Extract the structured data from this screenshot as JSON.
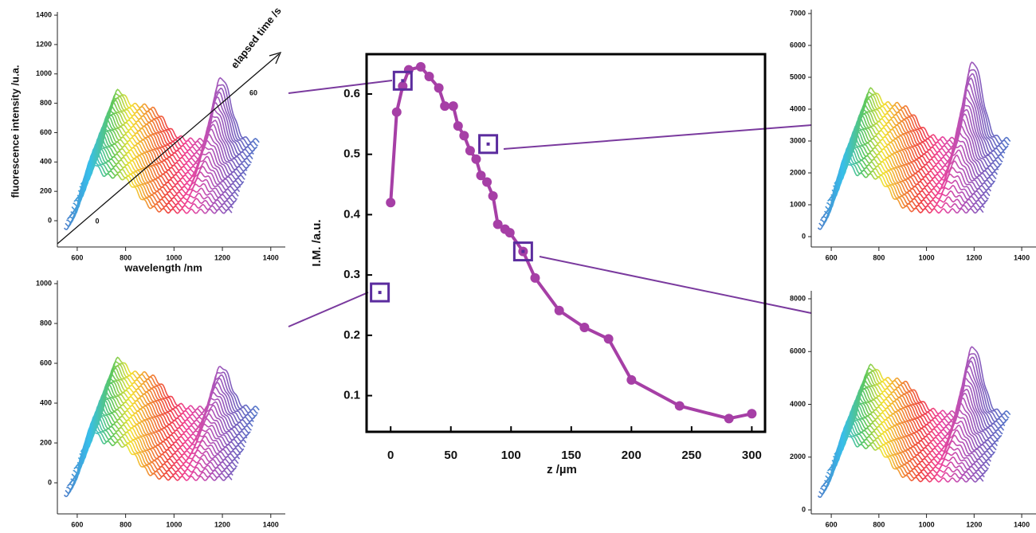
{
  "chart_data": {
    "type": "line",
    "x": [
      0,
      5,
      10,
      15,
      25,
      32,
      40,
      45,
      52,
      56,
      61,
      66,
      71,
      75,
      80,
      85,
      89,
      95,
      99,
      110,
      120,
      140,
      161,
      181,
      200,
      240,
      281,
      300
    ],
    "series": [
      {
        "color": "#a63fa6",
        "values": [
          0.42,
          0.57,
          0.613,
          0.64,
          0.645,
          0.629,
          0.61,
          0.58,
          0.58,
          0.547,
          0.531,
          0.506,
          0.492,
          0.465,
          0.454,
          0.431,
          0.384,
          0.376,
          0.37,
          0.339,
          0.295,
          0.241,
          0.213,
          0.194,
          0.126,
          0.083,
          0.062,
          0.07
        ]
      }
    ],
    "highlights": {
      "color": "#5b2c9e",
      "x": [
        -9,
        10,
        81,
        110
      ],
      "y": [
        0.271,
        0.622,
        0.517,
        0.339
      ]
    },
    "xlabel": "z /µm",
    "ylabel": "I.M. /a.u.",
    "xlim": [
      -20,
      311
    ],
    "ylim": [
      0.04,
      0.666
    ],
    "xticks": [
      0,
      50,
      100,
      150,
      200,
      250,
      300
    ],
    "yticks": [
      0.1,
      0.2,
      0.3,
      0.4,
      0.5,
      0.6
    ]
  },
  "insets": [
    {
      "ylabel": "fluorescence intensity /u.a.",
      "xlabel": "wavelength /nm",
      "time_label": "elapsed time /s",
      "time_ticks": [
        0,
        60
      ],
      "xlim": [
        518,
        1460
      ],
      "ylim": [
        -179,
        1422
      ],
      "xticks": [
        600,
        800,
        1000,
        1200,
        1400
      ],
      "yticks": [
        0,
        200,
        400,
        600,
        800,
        1000,
        1200,
        1400
      ]
    },
    {
      "xlim": [
        518,
        1460
      ],
      "ylim": [
        -156,
        1016
      ],
      "xticks": [
        600,
        800,
        1000,
        1200,
        1400
      ],
      "yticks": [
        0,
        200,
        400,
        600,
        800,
        1000
      ]
    },
    {
      "xlim": [
        516,
        1460
      ],
      "ylim": [
        -325,
        7125
      ],
      "xticks": [
        600,
        800,
        1000,
        1200,
        1400
      ],
      "yticks": [
        0,
        1000,
        2000,
        3000,
        4000,
        5000,
        6000,
        7000
      ]
    },
    {
      "xlim": [
        516,
        1460
      ],
      "ylim": [
        -151,
        8302
      ],
      "xticks": [
        600,
        800,
        1000,
        1200,
        1400
      ],
      "yticks": [
        0,
        2000,
        4000,
        6000,
        8000
      ]
    }
  ]
}
